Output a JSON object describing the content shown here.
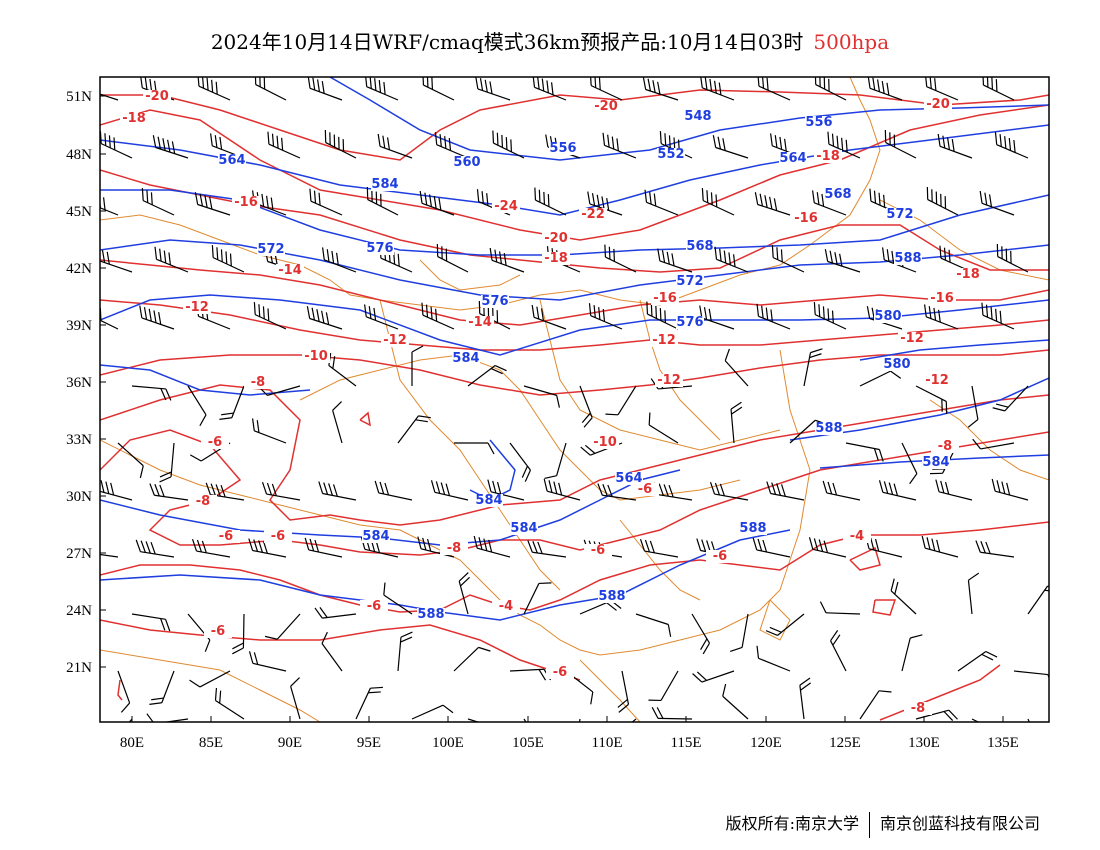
{
  "title": {
    "text": "2024年10月14日WRF/cmaq模式36km预报产品:10月14日03时",
    "level": "500hpa"
  },
  "colors": {
    "height": "#1f3ee0",
    "temperature": "#e03030",
    "border": "#e08a30",
    "wind": "#000000",
    "level_text": "#e03030"
  },
  "lat_labels": [
    "51N",
    "48N",
    "45N",
    "42N",
    "39N",
    "36N",
    "33N",
    "30N",
    "27N",
    "24N",
    "21N"
  ],
  "lon_labels": [
    "80E",
    "85E",
    "90E",
    "95E",
    "100E",
    "105E",
    "110E",
    "115E",
    "120E",
    "125E",
    "130E",
    "135E"
  ],
  "height_labels": [
    "548",
    "556",
    "560",
    "552",
    "556",
    "564",
    "568",
    "584",
    "568",
    "572",
    "576",
    "572",
    "588",
    "572",
    "576",
    "564",
    "580",
    "576",
    "580",
    "584",
    "588",
    "584",
    "584",
    "584",
    "564",
    "588",
    "588",
    "588",
    "584"
  ],
  "temp_labels": [
    "-20",
    "-20",
    "-20",
    "-18",
    "-18",
    "-16",
    "-16",
    "-14",
    "-24",
    "-22",
    "-20",
    "-18",
    "-16",
    "-16",
    "-18",
    "-12",
    "-14",
    "-12",
    "-12",
    "-12",
    "-10",
    "-12",
    "-8",
    "-12",
    "-10",
    "-8",
    "-8",
    "-6",
    "-6",
    "-8",
    "-6",
    "-6",
    "-6",
    "-6",
    "-4",
    "-4",
    "-6",
    "-8",
    "-6",
    "-6"
  ],
  "footer": {
    "copyright": "版权所有:南京大学",
    "company": "南京创蓝科技有限公司"
  }
}
